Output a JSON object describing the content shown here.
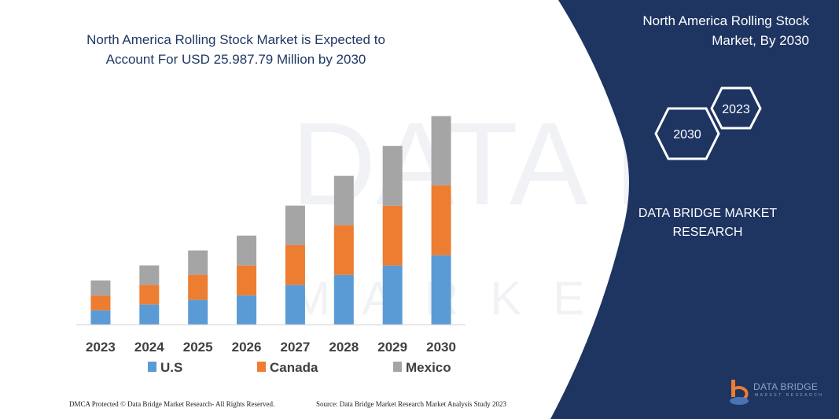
{
  "header": {
    "title": "North America Rolling Stock Market is Expected to Account For USD 25.987.79 Million by 2030"
  },
  "side_panel": {
    "title": "North America Rolling Stock Market, By 2030",
    "hex_badges": [
      "2030",
      "2023"
    ],
    "brand": "DATA BRIDGE MARKET RESEARCH",
    "logo_text": "DATA BRIDGE",
    "logo_subtext": "MARKET RESEARCH",
    "panel_color": "#1e3461"
  },
  "footer": {
    "left": "DMCA Protected © Data Bridge Market Research-  All Rights Reserved.",
    "right": "Source: Data Bridge Market Research  Market Analysis Study 2023"
  },
  "chart_data": {
    "type": "bar",
    "stacked": true,
    "title": "",
    "xlabel": "",
    "ylabel": "",
    "y_axis_shown": false,
    "grid": false,
    "legend_placement": "bottom",
    "categories": [
      "2023",
      "2024",
      "2025",
      "2026",
      "2027",
      "2028",
      "2029",
      "2030"
    ],
    "ylim": [
      0,
      270
    ],
    "series": [
      {
        "name": "U.S",
        "color": "#5b9bd5",
        "values": [
          18.3,
          25.7,
          31.7,
          37.3,
          50.7,
          63.3,
          75.3,
          88.3
        ]
      },
      {
        "name": "Canada",
        "color": "#ed7d31",
        "values": [
          19,
          25,
          31.7,
          38,
          50.7,
          63.3,
          76,
          89
        ]
      },
      {
        "name": "Mexico",
        "color": "#a5a5a5",
        "values": [
          19,
          24.7,
          31,
          38,
          50,
          62.7,
          76,
          88
        ]
      }
    ]
  }
}
